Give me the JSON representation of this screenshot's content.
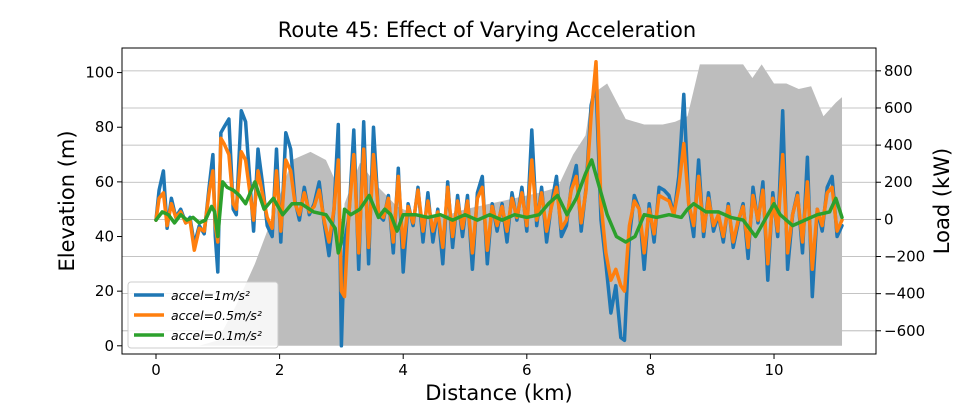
{
  "chart_data": {
    "type": "line",
    "title": "Route 45: Effect of Varying Acceleration",
    "xlabel": "Distance (km)",
    "ylabel_left": "Elevation (m)",
    "ylabel_right": "Load (kW)",
    "xlim": [
      -0.55,
      11.65
    ],
    "ylim_left": [
      -3,
      109
    ],
    "ylim_right": [
      -725,
      923
    ],
    "xticks": [
      "0",
      "2",
      "4",
      "6",
      "8",
      "10"
    ],
    "yticks_left": [
      "0",
      "20",
      "40",
      "60",
      "80",
      "100"
    ],
    "yticks_right": [
      "−600",
      "−400",
      "−200",
      "0",
      "200",
      "400",
      "600",
      "800"
    ],
    "grid": "horizontal lines at right-axis ticks",
    "legend_position": "lower-left",
    "elevation": {
      "name": "elevation",
      "color": "#bdbdbd",
      "x": [
        0,
        0.35,
        0.7,
        1.0,
        1.3,
        1.6,
        1.9,
        2.2,
        2.5,
        2.75,
        2.95,
        3.0,
        3.05,
        3.3,
        3.6,
        3.9,
        4.2,
        4.6,
        5.0,
        5.4,
        5.8,
        6.2,
        6.5,
        6.75,
        6.95,
        7.05,
        7.3,
        7.6,
        7.9,
        8.2,
        8.4,
        8.6,
        8.8,
        9.0,
        9.3,
        9.5,
        9.65,
        9.8,
        10.0,
        10.2,
        10.4,
        10.6,
        10.8,
        11.0,
        11.1
      ],
      "values": [
        0,
        0,
        0,
        2,
        15,
        30,
        48,
        68,
        71,
        68,
        58,
        0,
        52,
        67,
        58,
        51,
        48,
        47,
        50,
        52,
        54,
        56,
        58,
        70,
        77,
        92,
        96,
        83,
        81,
        81,
        82,
        84,
        103,
        103,
        103,
        103,
        98,
        103,
        96,
        96,
        94,
        95,
        84,
        89,
        91
      ]
    },
    "series": [
      {
        "name": "accel=1m/s²",
        "color": "#1f77b4",
        "x": [
          0,
          0.05,
          0.12,
          0.18,
          0.25,
          0.32,
          0.4,
          0.48,
          0.55,
          0.62,
          0.7,
          0.78,
          0.86,
          0.92,
          0.96,
          1.0,
          1.05,
          1.1,
          1.18,
          1.25,
          1.3,
          1.38,
          1.45,
          1.52,
          1.58,
          1.65,
          1.72,
          1.8,
          1.88,
          1.95,
          2.02,
          2.1,
          2.18,
          2.25,
          2.32,
          2.4,
          2.48,
          2.56,
          2.64,
          2.72,
          2.8,
          2.88,
          2.95,
          3.0,
          3.05,
          3.12,
          3.2,
          3.28,
          3.36,
          3.44,
          3.52,
          3.6,
          3.68,
          3.76,
          3.84,
          3.92,
          4.0,
          4.08,
          4.16,
          4.24,
          4.32,
          4.4,
          4.48,
          4.56,
          4.64,
          4.72,
          4.8,
          4.88,
          4.96,
          5.04,
          5.12,
          5.2,
          5.28,
          5.36,
          5.44,
          5.52,
          5.6,
          5.68,
          5.76,
          5.84,
          5.92,
          6.0,
          6.08,
          6.16,
          6.24,
          6.32,
          6.4,
          6.48,
          6.56,
          6.64,
          6.72,
          6.8,
          6.88,
          6.96,
          7.04,
          7.12,
          7.2,
          7.28,
          7.36,
          7.44,
          7.52,
          7.58,
          7.66,
          7.74,
          7.82,
          7.9,
          7.98,
          8.06,
          8.14,
          8.22,
          8.3,
          8.38,
          8.46,
          8.54,
          8.62,
          8.7,
          8.78,
          8.86,
          8.94,
          9.02,
          9.1,
          9.18,
          9.26,
          9.34,
          9.42,
          9.5,
          9.58,
          9.66,
          9.74,
          9.82,
          9.9,
          9.98,
          10.06,
          10.14,
          10.22,
          10.3,
          10.38,
          10.46,
          10.54,
          10.62,
          10.7,
          10.78,
          10.86,
          10.94,
          11.02,
          11.1
        ],
        "values": [
          46,
          57,
          64,
          43,
          54,
          47,
          50,
          45,
          47,
          37,
          44,
          41,
          58,
          70,
          40,
          27,
          78,
          80,
          83,
          50,
          48,
          86,
          82,
          60,
          42,
          72,
          60,
          44,
          40,
          72,
          38,
          78,
          72,
          53,
          46,
          58,
          48,
          52,
          60,
          45,
          33,
          50,
          81,
          0,
          38,
          47,
          79,
          28,
          82,
          30,
          80,
          48,
          46,
          55,
          34,
          65,
          27,
          52,
          44,
          58,
          38,
          56,
          38,
          50,
          30,
          60,
          36,
          55,
          40,
          55,
          28,
          56,
          62,
          30,
          52,
          42,
          52,
          38,
          56,
          46,
          58,
          42,
          79,
          44,
          58,
          38,
          52,
          62,
          40,
          44,
          58,
          66,
          42,
          58,
          88,
          96,
          46,
          30,
          12,
          22,
          3,
          2,
          40,
          55,
          50,
          28,
          52,
          38,
          58,
          57,
          55,
          48,
          62,
          92,
          52,
          40,
          68,
          40,
          56,
          42,
          48,
          38,
          52,
          36,
          45,
          52,
          32,
          58,
          45,
          60,
          24,
          56,
          40,
          86,
          28,
          48,
          56,
          34,
          69,
          18,
          50,
          42,
          58,
          62,
          40,
          44
        ]
      },
      {
        "name": "accel=0.5m/s²",
        "color": "#ff7f0e",
        "x": [
          0,
          0.05,
          0.12,
          0.18,
          0.25,
          0.32,
          0.4,
          0.48,
          0.55,
          0.62,
          0.7,
          0.78,
          0.86,
          0.92,
          0.96,
          1.0,
          1.05,
          1.1,
          1.18,
          1.25,
          1.3,
          1.38,
          1.45,
          1.52,
          1.58,
          1.65,
          1.72,
          1.8,
          1.88,
          1.95,
          2.02,
          2.1,
          2.18,
          2.25,
          2.32,
          2.4,
          2.48,
          2.56,
          2.64,
          2.72,
          2.8,
          2.88,
          2.95,
          3.0,
          3.05,
          3.12,
          3.2,
          3.28,
          3.36,
          3.44,
          3.52,
          3.6,
          3.68,
          3.76,
          3.84,
          3.92,
          4.0,
          4.08,
          4.16,
          4.24,
          4.32,
          4.4,
          4.48,
          4.56,
          4.64,
          4.72,
          4.8,
          4.88,
          4.96,
          5.04,
          5.12,
          5.2,
          5.28,
          5.36,
          5.44,
          5.52,
          5.6,
          5.68,
          5.76,
          5.84,
          5.92,
          6.0,
          6.08,
          6.16,
          6.24,
          6.32,
          6.4,
          6.48,
          6.56,
          6.64,
          6.72,
          6.8,
          6.88,
          6.96,
          7.04,
          7.12,
          7.2,
          7.28,
          7.36,
          7.44,
          7.52,
          7.58,
          7.66,
          7.74,
          7.82,
          7.9,
          7.98,
          8.06,
          8.14,
          8.22,
          8.3,
          8.38,
          8.46,
          8.54,
          8.62,
          8.7,
          8.78,
          8.86,
          8.94,
          9.02,
          9.1,
          9.18,
          9.26,
          9.34,
          9.42,
          9.5,
          9.58,
          9.66,
          9.74,
          9.82,
          9.9,
          9.98,
          10.06,
          10.14,
          10.22,
          10.3,
          10.38,
          10.46,
          10.54,
          10.62,
          10.7,
          10.78,
          10.86,
          10.94,
          11.02,
          11.1
        ],
        "values": [
          46,
          54,
          56,
          44,
          52,
          47,
          49,
          45,
          46,
          35,
          43,
          42,
          56,
          64,
          44,
          38,
          76,
          74,
          70,
          52,
          50,
          71,
          68,
          56,
          46,
          64,
          56,
          47,
          43,
          64,
          42,
          68,
          64,
          52,
          48,
          56,
          49,
          51,
          57,
          46,
          38,
          50,
          68,
          20,
          18,
          48,
          70,
          34,
          72,
          36,
          70,
          49,
          47,
          54,
          38,
          62,
          36,
          51,
          45,
          57,
          42,
          53,
          42,
          49,
          36,
          58,
          40,
          53,
          43,
          53,
          34,
          54,
          58,
          35,
          51,
          44,
          51,
          42,
          54,
          47,
          56,
          44,
          68,
          46,
          56,
          42,
          51,
          58,
          43,
          46,
          57,
          62,
          45,
          57,
          84,
          104,
          52,
          34,
          24,
          28,
          22,
          20,
          44,
          53,
          50,
          34,
          50,
          41,
          55,
          54,
          53,
          48,
          58,
          74,
          52,
          44,
          62,
          42,
          54,
          44,
          48,
          40,
          51,
          38,
          46,
          51,
          36,
          55,
          46,
          57,
          30,
          54,
          42,
          70,
          34,
          48,
          55,
          38,
          60,
          28,
          50,
          44,
          56,
          58,
          42,
          46
        ]
      },
      {
        "name": "accel=0.1m/s²",
        "color": "#2ca02c",
        "x": [
          0,
          0.1,
          0.2,
          0.3,
          0.4,
          0.5,
          0.6,
          0.7,
          0.8,
          0.9,
          0.95,
          1.0,
          1.08,
          1.15,
          1.25,
          1.35,
          1.45,
          1.6,
          1.75,
          1.9,
          2.05,
          2.2,
          2.35,
          2.55,
          2.75,
          2.9,
          2.95,
          3.0,
          3.05,
          3.15,
          3.3,
          3.45,
          3.6,
          3.7,
          3.8,
          3.9,
          4.0,
          4.2,
          4.4,
          4.6,
          4.8,
          5.0,
          5.2,
          5.4,
          5.6,
          5.8,
          6.0,
          6.2,
          6.35,
          6.5,
          6.65,
          6.8,
          6.95,
          7.05,
          7.15,
          7.3,
          7.45,
          7.6,
          7.75,
          7.9,
          8.1,
          8.3,
          8.5,
          8.6,
          8.7,
          8.9,
          9.1,
          9.3,
          9.5,
          9.7,
          9.9,
          10.0,
          10.1,
          10.3,
          10.5,
          10.7,
          10.9,
          11.0,
          11.1
        ],
        "values": [
          46,
          49,
          48,
          45,
          48,
          46,
          47,
          45,
          46,
          51,
          49,
          40,
          60,
          58,
          57,
          55,
          52,
          60,
          50,
          54,
          48,
          52,
          52,
          49,
          48,
          43,
          34,
          38,
          50,
          48,
          50,
          55,
          47,
          50,
          48,
          42,
          48,
          48,
          47,
          48,
          46,
          48,
          46,
          48,
          46,
          48,
          47,
          48,
          52,
          55,
          48,
          54,
          63,
          68,
          60,
          48,
          40,
          38,
          40,
          48,
          47,
          48,
          47,
          50,
          52,
          49,
          49,
          47,
          46,
          40,
          48,
          52,
          48,
          44,
          46,
          48,
          49,
          54,
          47
        ]
      }
    ]
  }
}
